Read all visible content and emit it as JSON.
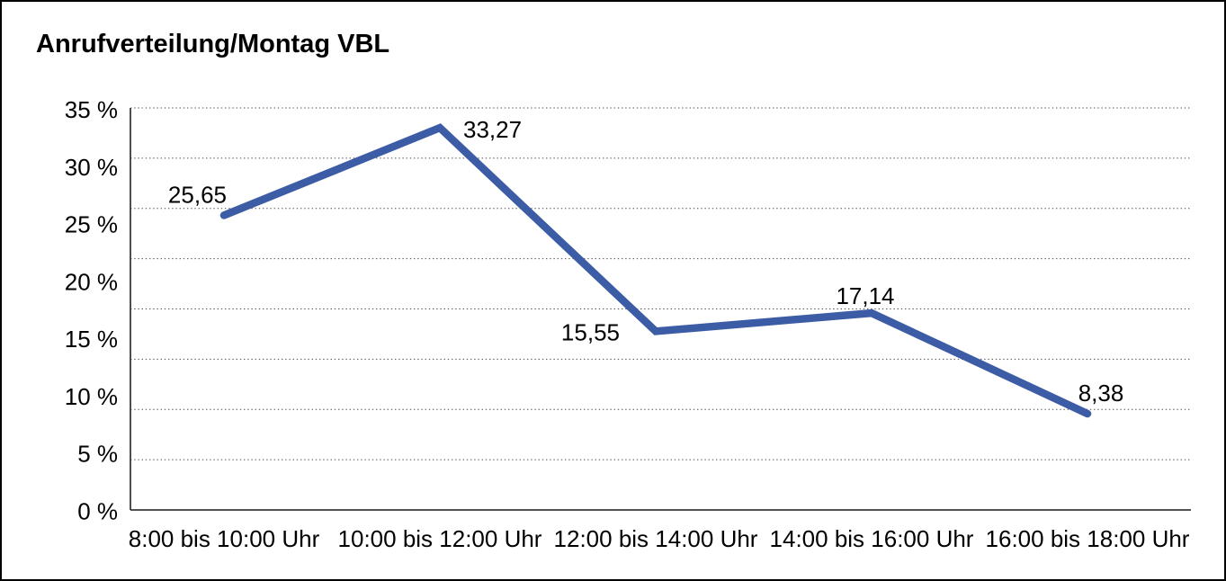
{
  "window": {
    "background_color": "#ffffff",
    "frame_color": "#000000"
  },
  "chart_data": {
    "type": "line",
    "title": "Anrufverteilung/Montag VBL",
    "categories": [
      "8:00 bis 10:00 Uhr",
      "10:00 bis 12:00 Uhr",
      "12:00 bis 14:00 Uhr",
      "14:00 bis 16:00 Uhr",
      "16:00 bis 18:00 Uhr"
    ],
    "values": [
      25.65,
      33.27,
      15.55,
      17.14,
      8.38
    ],
    "value_labels": [
      "25,65",
      "33,27",
      "15,55",
      "17,14",
      "8,38"
    ],
    "y_ticks": [
      "0 %",
      "5 %",
      "10 %",
      "15 %",
      "20 %",
      "25 %",
      "30 %",
      "35 %"
    ],
    "ylim": [
      0,
      35
    ],
    "xlabel": "",
    "ylabel": "",
    "legend": "none",
    "grid": "horizontal-dotted",
    "line_color": "#3C5CA6",
    "grid_color": "#4d4d4d",
    "axis_color": "#3a3a3a",
    "text_color": "#000000"
  }
}
